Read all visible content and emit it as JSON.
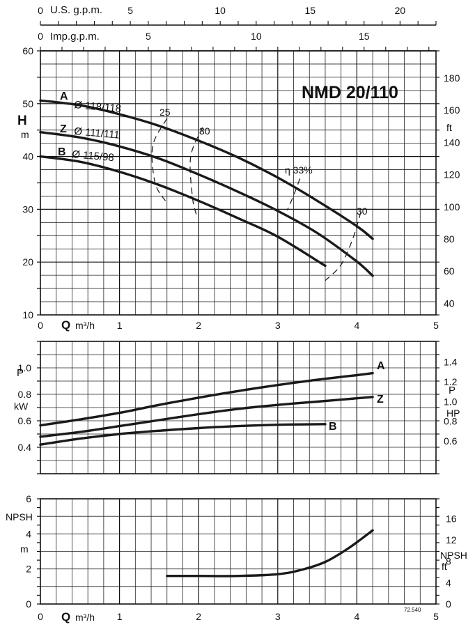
{
  "model_title": "NMD 20/110",
  "footnote": "72.540",
  "top_axes": {
    "usgpm": {
      "label": "U.S. g.p.m.",
      "ticks": [
        "0",
        "5",
        "10",
        "15",
        "20"
      ]
    },
    "impgpm": {
      "label": "Imp.g.p.m.",
      "ticks": [
        "0",
        "5",
        "10",
        "15"
      ]
    }
  },
  "q_axis": {
    "label": "Q",
    "unit": "m³/h",
    "ticks": [
      "0",
      "1",
      "2",
      "3",
      "4",
      "5"
    ]
  },
  "chart_data": [
    {
      "type": "line",
      "panel": "head",
      "ylabel": "H",
      "yunit": "m",
      "right_unit": "ft",
      "xlim": [
        0,
        5
      ],
      "ylim": [
        10,
        60
      ],
      "y_ticks": [
        "10",
        "20",
        "30",
        "40",
        "50",
        "60"
      ],
      "right_ticks": [
        "40",
        "60",
        "80",
        "100",
        "120",
        "140",
        "160",
        "180"
      ],
      "series": [
        {
          "name": "A",
          "label": "Ø 118/118",
          "x": [
            0,
            0.5,
            1.0,
            1.5,
            2.0,
            2.5,
            3.0,
            3.5,
            4.0,
            4.2
          ],
          "y": [
            50.6,
            49.7,
            48.0,
            45.8,
            43.0,
            39.8,
            36.0,
            31.6,
            26.8,
            24.4
          ]
        },
        {
          "name": "Z",
          "label": "Ø 111/111",
          "x": [
            0,
            0.5,
            1.0,
            1.5,
            2.0,
            2.5,
            3.0,
            3.5,
            4.0,
            4.2
          ],
          "y": [
            44.6,
            43.6,
            41.9,
            39.6,
            36.6,
            33.3,
            29.7,
            25.5,
            20.1,
            17.4
          ]
        },
        {
          "name": "B",
          "label": "Ø 115/98",
          "x": [
            0,
            0.5,
            1.0,
            1.5,
            2.0,
            2.5,
            3.0,
            3.6
          ],
          "y": [
            40.0,
            39.0,
            37.1,
            34.6,
            31.6,
            28.3,
            24.8,
            19.3
          ]
        }
      ],
      "efficiency_labels": [
        "25",
        "30",
        "η 33%",
        "30"
      ]
    },
    {
      "type": "line",
      "panel": "power",
      "ylabel": "P",
      "yunit": "kW",
      "right_label": "P",
      "right_unit": "HP",
      "xlim": [
        0,
        5
      ],
      "ylim": [
        0.2,
        1.2
      ],
      "y_ticks": [
        "0.4",
        "0.6",
        "0.8",
        "1.0"
      ],
      "right_ticks": [
        "0.6",
        "0.8",
        "1.0",
        "1.2",
        "1.4"
      ],
      "series": [
        {
          "name": "A",
          "x": [
            0,
            0.5,
            1.0,
            1.5,
            2.0,
            2.5,
            3.0,
            3.5,
            4.0,
            4.2
          ],
          "y": [
            0.565,
            0.61,
            0.66,
            0.72,
            0.775,
            0.825,
            0.87,
            0.91,
            0.945,
            0.96
          ]
        },
        {
          "name": "Z",
          "x": [
            0,
            0.5,
            1.0,
            1.5,
            2.0,
            2.5,
            3.0,
            3.5,
            4.0,
            4.2
          ],
          "y": [
            0.48,
            0.515,
            0.56,
            0.605,
            0.65,
            0.69,
            0.72,
            0.745,
            0.77,
            0.78
          ]
        },
        {
          "name": "B",
          "x": [
            0,
            0.5,
            1.0,
            1.5,
            2.0,
            2.5,
            3.0,
            3.6
          ],
          "y": [
            0.42,
            0.465,
            0.5,
            0.525,
            0.545,
            0.56,
            0.57,
            0.575
          ]
        }
      ]
    },
    {
      "type": "line",
      "panel": "npsh",
      "ylabel": "NPSH",
      "yunit": "m",
      "right_label": "NPSH",
      "right_unit": "ft",
      "xlim": [
        0,
        5
      ],
      "ylim": [
        0,
        6
      ],
      "y_ticks": [
        "0",
        "2",
        "4",
        "6"
      ],
      "right_ticks": [
        "0",
        "4",
        "8",
        "12",
        "16"
      ],
      "series": [
        {
          "x": [
            1.6,
            2.0,
            2.5,
            3.0,
            3.3,
            3.6,
            3.9,
            4.2
          ],
          "y": [
            1.6,
            1.6,
            1.6,
            1.7,
            1.95,
            2.4,
            3.2,
            4.2
          ]
        }
      ]
    }
  ]
}
